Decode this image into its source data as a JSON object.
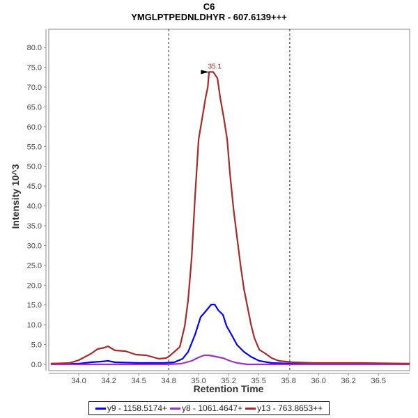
{
  "chart_data": {
    "type": "line",
    "title": "C6",
    "subtitle": "YMGLPTPEDNLDHYR - 607.6139+++",
    "xlabel": "Retention Time",
    "ylabel": "Intensity 10^3",
    "xlim": [
      33.75,
      36.76
    ],
    "ylim": [
      0,
      84.6
    ],
    "grid": false,
    "legend_position": "bottom",
    "x_ticks": [
      {
        "value": 34.0,
        "label": "34.0"
      },
      {
        "value": 34.25,
        "label": "34.2"
      },
      {
        "value": 34.5,
        "label": "34.5"
      },
      {
        "value": 34.75,
        "label": "34.8"
      },
      {
        "value": 35.0,
        "label": "35.0"
      },
      {
        "value": 35.25,
        "label": "35.2"
      },
      {
        "value": 35.5,
        "label": "35.5"
      },
      {
        "value": 35.75,
        "label": "35.8"
      },
      {
        "value": 36.0,
        "label": "36.0"
      },
      {
        "value": 36.25,
        "label": "36.2"
      },
      {
        "value": 36.5,
        "label": "36.5"
      }
    ],
    "y_ticks": [
      {
        "value": 0,
        "label": "0.0"
      },
      {
        "value": 5,
        "label": "5.0"
      },
      {
        "value": 10,
        "label": "10.0"
      },
      {
        "value": 15,
        "label": "15.0"
      },
      {
        "value": 20,
        "label": "20.0"
      },
      {
        "value": 25,
        "label": "25.0"
      },
      {
        "value": 30,
        "label": "30.0"
      },
      {
        "value": 35,
        "label": "35.0"
      },
      {
        "value": 40,
        "label": "40.0"
      },
      {
        "value": 45,
        "label": "45.0"
      },
      {
        "value": 50,
        "label": "50.0"
      },
      {
        "value": 55,
        "label": "55.0"
      },
      {
        "value": 60,
        "label": "60.0"
      },
      {
        "value": 65,
        "label": "65.0"
      },
      {
        "value": 70,
        "label": "70.0"
      },
      {
        "value": 75,
        "label": "75.0"
      },
      {
        "value": 80,
        "label": "80.0"
      }
    ],
    "integration_bounds": [
      34.75,
      35.76
    ],
    "annotations": [
      {
        "text": "35.1",
        "x": 35.1,
        "y": 73.8,
        "color": "#a52a2a"
      }
    ],
    "series": [
      {
        "name": "y9 - 1158.5174+",
        "color": "#0000ff",
        "x": [
          33.767,
          34.0,
          34.099,
          34.186,
          34.244,
          34.302,
          34.506,
          34.709,
          34.797,
          34.866,
          34.913,
          34.971,
          35.017,
          35.058,
          35.105,
          35.134,
          35.163,
          35.203,
          35.233,
          35.273,
          35.32,
          35.378,
          35.436,
          35.506,
          35.61,
          35.785,
          36.762
        ],
        "y": [
          0.18,
          0.18,
          0.53,
          0.7,
          0.88,
          0.53,
          0.35,
          0.35,
          0.53,
          1.41,
          3.16,
          7.56,
          11.95,
          13.36,
          15.11,
          15.11,
          13.71,
          12.48,
          9.67,
          7.56,
          4.92,
          3.16,
          1.93,
          0.88,
          0.35,
          0.18,
          0.18
        ]
      },
      {
        "name": "y8 - 1061.4647+",
        "color": "#9932cc",
        "x": [
          33.767,
          34.738,
          34.855,
          34.942,
          35.0,
          35.047,
          35.087,
          35.145,
          35.203,
          35.262,
          35.32,
          35.407,
          36.762
        ],
        "y": [
          0,
          0,
          0.18,
          0.88,
          1.76,
          2.28,
          2.28,
          1.93,
          1.58,
          0.88,
          0.35,
          0,
          0
        ]
      },
      {
        "name": "y13 - 763.8653++",
        "color": "#a52a2a",
        "x": [
          33.767,
          33.924,
          34.0,
          34.099,
          34.157,
          34.215,
          34.244,
          34.302,
          34.39,
          34.477,
          34.564,
          34.669,
          34.727,
          34.75,
          34.797,
          34.843,
          34.884,
          34.913,
          34.942,
          34.971,
          35.0,
          35.029,
          35.058,
          35.076,
          35.087,
          35.122,
          35.157,
          35.18,
          35.209,
          35.238,
          35.262,
          35.291,
          35.32,
          35.349,
          35.378,
          35.407,
          35.436,
          35.465,
          35.506,
          35.552,
          35.61,
          35.669,
          35.785,
          35.959,
          36.134,
          36.366,
          36.762
        ],
        "y": [
          0.18,
          0.35,
          1.05,
          2.64,
          3.87,
          4.22,
          4.57,
          3.51,
          3.34,
          2.46,
          2.28,
          1.41,
          1.58,
          1.93,
          3.16,
          4.39,
          9.67,
          16.34,
          26.89,
          42.7,
          56.77,
          62.04,
          67.31,
          69.95,
          73.81,
          73.81,
          72.23,
          67.31,
          62.39,
          56.77,
          47.98,
          39.19,
          32.16,
          25.13,
          18.98,
          14.59,
          10.19,
          6.68,
          3.69,
          2.81,
          1.58,
          0.88,
          0.53,
          0.35,
          0.35,
          0.35,
          0.18
        ]
      }
    ]
  }
}
